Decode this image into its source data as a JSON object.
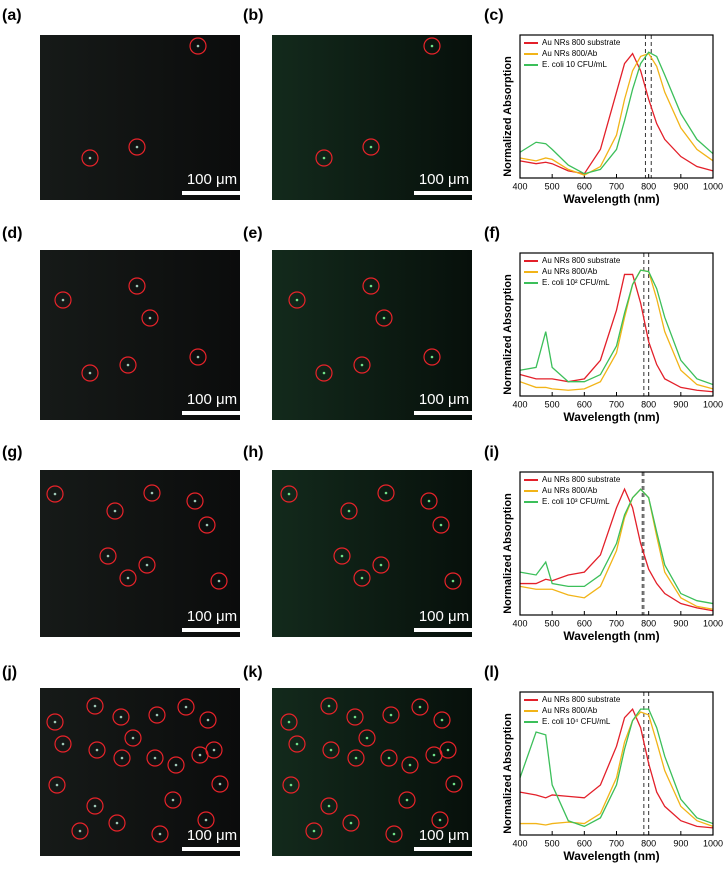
{
  "image_panels": [
    {
      "label": "(a)",
      "scale_bar": "100 μm"
    },
    {
      "label": "(b)",
      "scale_bar": "100 μm"
    },
    {
      "label": "(d)",
      "scale_bar": "100 μm"
    },
    {
      "label": "(e)",
      "scale_bar": "100 μm"
    },
    {
      "label": "(g)",
      "scale_bar": "100 μm"
    },
    {
      "label": "(h)",
      "scale_bar": "100 μm"
    },
    {
      "label": "(j)",
      "scale_bar": "100 μm"
    },
    {
      "label": "(k)",
      "scale_bar": "100 μm"
    }
  ],
  "chart_data": [
    {
      "type": "line",
      "label": "(c)",
      "xlabel": "Wavelength (nm)",
      "ylabel": "Normalized Absorption",
      "xlim": [
        400,
        1000
      ],
      "xticks": [
        400,
        500,
        600,
        700,
        800,
        900,
        1000
      ],
      "ylim": [
        0,
        1
      ],
      "vlines": [
        790,
        808
      ],
      "x": [
        400,
        450,
        480,
        500,
        550,
        600,
        650,
        700,
        725,
        750,
        775,
        800,
        825,
        850,
        900,
        950,
        1000
      ],
      "series": [
        {
          "name": "Au NRs 800 substrate",
          "color": "#e3202a",
          "values": [
            0.12,
            0.1,
            0.11,
            0.1,
            0.05,
            0.03,
            0.2,
            0.6,
            0.8,
            0.87,
            0.75,
            0.55,
            0.38,
            0.27,
            0.15,
            0.08,
            0.05
          ]
        },
        {
          "name": "Au NRs 800/Ab",
          "color": "#f2b418",
          "values": [
            0.14,
            0.12,
            0.14,
            0.13,
            0.06,
            0.02,
            0.08,
            0.3,
            0.55,
            0.75,
            0.85,
            0.87,
            0.78,
            0.6,
            0.35,
            0.2,
            0.12
          ]
        },
        {
          "name": "E. coli 10 CFU/mL",
          "color": "#3cbf5a",
          "values": [
            0.18,
            0.25,
            0.24,
            0.2,
            0.09,
            0.03,
            0.06,
            0.2,
            0.4,
            0.62,
            0.8,
            0.88,
            0.85,
            0.72,
            0.45,
            0.27,
            0.17
          ]
        }
      ]
    },
    {
      "type": "line",
      "label": "(f)",
      "xlabel": "Wavelength (nm)",
      "ylabel": "Normalized Absorption",
      "xlim": [
        400,
        1000
      ],
      "xticks": [
        400,
        500,
        600,
        700,
        800,
        900,
        1000
      ],
      "ylim": [
        0,
        1
      ],
      "vlines": [
        785,
        800
      ],
      "x": [
        400,
        450,
        480,
        500,
        550,
        600,
        650,
        700,
        725,
        750,
        775,
        800,
        825,
        850,
        900,
        950,
        1000
      ],
      "series": [
        {
          "name": "Au NRs 800 substrate",
          "color": "#e3202a",
          "values": [
            0.15,
            0.12,
            0.12,
            0.12,
            0.1,
            0.12,
            0.25,
            0.6,
            0.85,
            0.85,
            0.65,
            0.38,
            0.22,
            0.12,
            0.06,
            0.04,
            0.03
          ]
        },
        {
          "name": "Au NRs 800/Ab",
          "color": "#f2b418",
          "values": [
            0.1,
            0.06,
            0.06,
            0.05,
            0.04,
            0.05,
            0.1,
            0.3,
            0.55,
            0.78,
            0.88,
            0.87,
            0.68,
            0.45,
            0.18,
            0.08,
            0.05
          ]
        },
        {
          "name": "E. coli 10² CFU/mL",
          "color": "#3cbf5a",
          "values": [
            0.18,
            0.2,
            0.45,
            0.2,
            0.1,
            0.1,
            0.15,
            0.35,
            0.58,
            0.78,
            0.88,
            0.87,
            0.75,
            0.55,
            0.25,
            0.12,
            0.08
          ]
        }
      ]
    },
    {
      "type": "line",
      "label": "(i)",
      "xlabel": "Wavelength (nm)",
      "ylabel": "Normalized Absorption",
      "xlim": [
        400,
        1000
      ],
      "xticks": [
        400,
        500,
        600,
        700,
        800,
        900,
        1000
      ],
      "ylim": [
        0,
        1
      ],
      "vlines": [
        780,
        785
      ],
      "x": [
        400,
        450,
        480,
        500,
        550,
        600,
        650,
        700,
        725,
        750,
        775,
        800,
        825,
        850,
        900,
        950,
        1000
      ],
      "series": [
        {
          "name": "Au NRs 800 substrate",
          "color": "#e3202a",
          "values": [
            0.22,
            0.22,
            0.25,
            0.24,
            0.28,
            0.3,
            0.42,
            0.75,
            0.88,
            0.75,
            0.5,
            0.32,
            0.22,
            0.15,
            0.08,
            0.05,
            0.03
          ]
        },
        {
          "name": "Au NRs 800/Ab",
          "color": "#f2b418",
          "values": [
            0.2,
            0.18,
            0.18,
            0.18,
            0.14,
            0.12,
            0.2,
            0.45,
            0.68,
            0.82,
            0.88,
            0.82,
            0.55,
            0.3,
            0.12,
            0.06,
            0.04
          ]
        },
        {
          "name": "E. coli 10³ CFU/mL",
          "color": "#3cbf5a",
          "values": [
            0.3,
            0.28,
            0.37,
            0.22,
            0.2,
            0.2,
            0.28,
            0.5,
            0.7,
            0.82,
            0.88,
            0.82,
            0.58,
            0.35,
            0.15,
            0.1,
            0.08
          ]
        }
      ]
    },
    {
      "type": "line",
      "label": "(l)",
      "xlabel": "Wavelength (nm)",
      "ylabel": "Normalized Absorption",
      "xlim": [
        400,
        1000
      ],
      "xticks": [
        400,
        500,
        600,
        700,
        800,
        900,
        1000
      ],
      "ylim": [
        0,
        1
      ],
      "vlines": [
        785,
        800
      ],
      "x": [
        400,
        450,
        480,
        500,
        550,
        600,
        650,
        700,
        725,
        750,
        775,
        800,
        825,
        850,
        900,
        950,
        1000
      ],
      "series": [
        {
          "name": "Au NRs 800 substrate",
          "color": "#e3202a",
          "values": [
            0.3,
            0.28,
            0.26,
            0.28,
            0.27,
            0.26,
            0.35,
            0.62,
            0.82,
            0.88,
            0.75,
            0.5,
            0.3,
            0.2,
            0.1,
            0.06,
            0.05
          ]
        },
        {
          "name": "Au NRs 800/Ab",
          "color": "#f2b418",
          "values": [
            0.08,
            0.08,
            0.07,
            0.08,
            0.09,
            0.08,
            0.15,
            0.4,
            0.65,
            0.8,
            0.86,
            0.84,
            0.65,
            0.45,
            0.2,
            0.1,
            0.06
          ]
        },
        {
          "name": "E. coli 10⁴ CFU/mL",
          "color": "#3cbf5a",
          "values": [
            0.4,
            0.72,
            0.7,
            0.35,
            0.1,
            0.06,
            0.12,
            0.35,
            0.6,
            0.8,
            0.88,
            0.88,
            0.75,
            0.55,
            0.25,
            0.12,
            0.08
          ]
        }
      ]
    }
  ]
}
